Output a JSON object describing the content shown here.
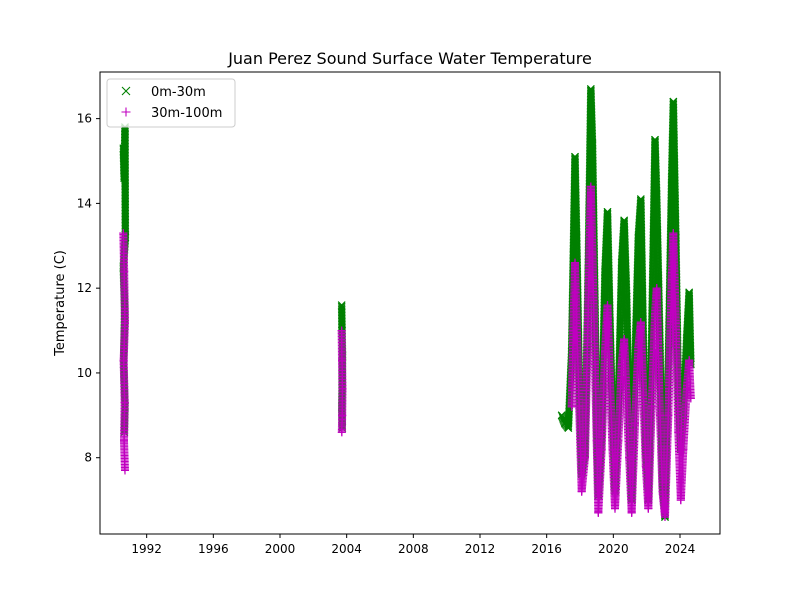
{
  "chart_data": {
    "type": "scatter",
    "title": "Juan Perez Sound Surface Water Temperature",
    "xlabel": "",
    "ylabel": "Temperature (C)",
    "xlim": [
      1989.2,
      2026.4
    ],
    "ylim": [
      6.2,
      17.1
    ],
    "x_ticks": [
      1992,
      1996,
      2000,
      2004,
      2008,
      2012,
      2016,
      2020,
      2024
    ],
    "y_ticks": [
      8,
      10,
      12,
      14,
      16
    ],
    "grid": false,
    "legend_placement": "upper-left",
    "series": [
      {
        "name": "0m-30m",
        "marker": "x",
        "color": "#008000",
        "points": [
          [
            1990.6,
            15.3
          ],
          [
            1990.65,
            14.6
          ],
          [
            1990.7,
            15.8
          ],
          [
            1990.72,
            13.2
          ],
          [
            1990.6,
            12.5
          ],
          [
            1990.68,
            11.5
          ],
          [
            1990.62,
            10.2
          ],
          [
            1990.7,
            9.2
          ],
          [
            1990.66,
            8.6
          ],
          [
            2003.7,
            11.6
          ],
          [
            2003.72,
            11.0
          ],
          [
            2003.75,
            10.4
          ],
          [
            2003.73,
            9.8
          ],
          [
            2003.71,
            9.2
          ],
          [
            2003.74,
            8.7
          ],
          [
            2016.9,
            9.0
          ],
          [
            2017.1,
            8.8
          ],
          [
            2017.3,
            8.7
          ],
          [
            2017.5,
            10.5
          ],
          [
            2017.6,
            12.8
          ],
          [
            2017.7,
            15.1
          ],
          [
            2017.8,
            13.2
          ],
          [
            2017.95,
            10.0
          ],
          [
            2018.1,
            7.6
          ],
          [
            2018.3,
            8.1
          ],
          [
            2018.5,
            12.6
          ],
          [
            2018.65,
            16.7
          ],
          [
            2018.75,
            15.4
          ],
          [
            2018.9,
            11.6
          ],
          [
            2019.0,
            8.8
          ],
          [
            2019.1,
            7.1
          ],
          [
            2019.3,
            8.6
          ],
          [
            2019.5,
            12.4
          ],
          [
            2019.65,
            13.8
          ],
          [
            2019.8,
            11.2
          ],
          [
            2019.95,
            8.9
          ],
          [
            2020.1,
            7.2
          ],
          [
            2020.3,
            9.2
          ],
          [
            2020.5,
            12.6
          ],
          [
            2020.65,
            13.6
          ],
          [
            2020.8,
            11.8
          ],
          [
            2020.95,
            8.7
          ],
          [
            2021.1,
            7.0
          ],
          [
            2021.3,
            10.2
          ],
          [
            2021.5,
            13.2
          ],
          [
            2021.65,
            14.1
          ],
          [
            2021.8,
            10.8
          ],
          [
            2021.95,
            8.2
          ],
          [
            2022.1,
            7.0
          ],
          [
            2022.3,
            10.8
          ],
          [
            2022.5,
            15.5
          ],
          [
            2022.6,
            14.2
          ],
          [
            2022.8,
            10.6
          ],
          [
            2022.95,
            7.4
          ],
          [
            2023.1,
            6.6
          ],
          [
            2023.3,
            10.2
          ],
          [
            2023.5,
            14.6
          ],
          [
            2023.6,
            16.4
          ],
          [
            2023.75,
            13.2
          ],
          [
            2023.9,
            9.6
          ],
          [
            2024.05,
            8.2
          ],
          [
            2024.2,
            9.0
          ],
          [
            2024.4,
            10.8
          ],
          [
            2024.55,
            11.9
          ],
          [
            2024.65,
            10.2
          ]
        ]
      },
      {
        "name": "30m-100m",
        "marker": "+",
        "color": "#c000c0",
        "points": [
          [
            1990.6,
            13.3
          ],
          [
            1990.65,
            12.4
          ],
          [
            1990.7,
            11.2
          ],
          [
            1990.62,
            10.3
          ],
          [
            1990.68,
            9.3
          ],
          [
            1990.64,
            8.4
          ],
          [
            1990.7,
            7.7
          ],
          [
            2003.7,
            11.0
          ],
          [
            2003.72,
            10.3
          ],
          [
            2003.75,
            9.6
          ],
          [
            2003.73,
            9.0
          ],
          [
            2003.71,
            8.6
          ],
          [
            2017.5,
            9.2
          ],
          [
            2017.6,
            11.0
          ],
          [
            2017.7,
            12.6
          ],
          [
            2017.8,
            11.2
          ],
          [
            2017.95,
            9.2
          ],
          [
            2018.1,
            7.2
          ],
          [
            2018.3,
            8.0
          ],
          [
            2018.5,
            11.6
          ],
          [
            2018.65,
            14.4
          ],
          [
            2018.75,
            12.8
          ],
          [
            2018.9,
            10.2
          ],
          [
            2019.0,
            8.4
          ],
          [
            2019.1,
            6.7
          ],
          [
            2019.3,
            8.2
          ],
          [
            2019.5,
            10.5
          ],
          [
            2019.65,
            11.6
          ],
          [
            2019.8,
            9.8
          ],
          [
            2019.95,
            8.2
          ],
          [
            2020.1,
            6.8
          ],
          [
            2020.3,
            8.4
          ],
          [
            2020.5,
            10.2
          ],
          [
            2020.65,
            10.8
          ],
          [
            2020.8,
            9.4
          ],
          [
            2020.95,
            8.0
          ],
          [
            2021.1,
            6.7
          ],
          [
            2021.3,
            8.8
          ],
          [
            2021.5,
            10.6
          ],
          [
            2021.65,
            11.2
          ],
          [
            2021.8,
            9.5
          ],
          [
            2021.95,
            7.8
          ],
          [
            2022.1,
            6.8
          ],
          [
            2022.3,
            9.2
          ],
          [
            2022.5,
            11.4
          ],
          [
            2022.6,
            12.0
          ],
          [
            2022.8,
            9.0
          ],
          [
            2022.95,
            7.2
          ],
          [
            2023.1,
            6.6
          ],
          [
            2023.3,
            9.0
          ],
          [
            2023.5,
            12.2
          ],
          [
            2023.6,
            13.3
          ],
          [
            2023.75,
            11.2
          ],
          [
            2023.9,
            8.6
          ],
          [
            2024.05,
            7.0
          ],
          [
            2024.2,
            8.2
          ],
          [
            2024.4,
            9.6
          ],
          [
            2024.55,
            10.3
          ],
          [
            2024.65,
            9.4
          ]
        ]
      }
    ]
  }
}
